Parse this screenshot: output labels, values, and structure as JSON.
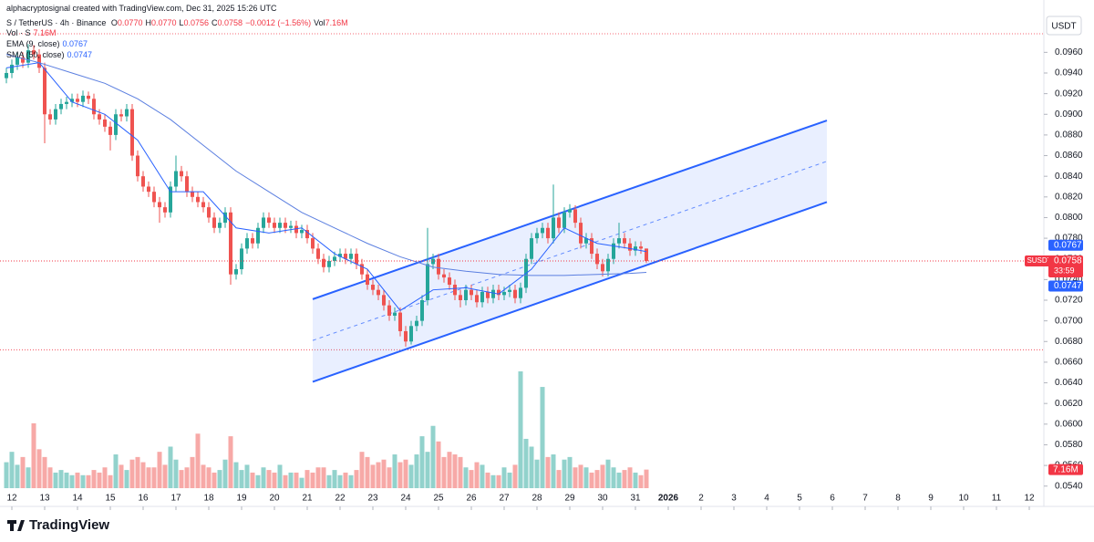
{
  "chart_data": {
    "type": "candlestick",
    "credit": "alphacryptosignal created with TradingView.com, Dec 31, 2025 15:26 UTC",
    "symbol": "S / TetherUS · 4h · Binance",
    "ohlc_keys": [
      "O",
      "H",
      "L",
      "C"
    ],
    "ohlc": [
      {
        "value": 0.077,
        "label": "0.0770"
      },
      {
        "value": 0.077,
        "label": "0.0770"
      },
      {
        "value": 0.0756,
        "label": "0.0756"
      },
      {
        "value": 0.0758,
        "label": "0.0758"
      }
    ],
    "change": {
      "value": -0.0012,
      "label": "−0.0012 (−1.56%)"
    },
    "vol_key": "Vol",
    "vol_last": {
      "value": 7.16,
      "label": "7.16M"
    },
    "indicators": [
      {
        "name": "Vol · S",
        "value_label": "7.16M",
        "color": "#f23645"
      },
      {
        "name": "EMA (9, close)",
        "value_label": "0.0767",
        "color": "#2962ff"
      },
      {
        "name": "SMA (50, close)",
        "value_label": "0.0747",
        "color": "#2962ff"
      }
    ],
    "currency": "USDT",
    "up_color": "#26a69a",
    "down_color": "#ef5350",
    "ylim": [
      0.0538,
      0.0993
    ],
    "yticks": [
      {
        "value": 0.054,
        "label": "0.0540"
      },
      {
        "value": 0.056,
        "label": "0.0560"
      },
      {
        "value": 0.058,
        "label": "0.0580"
      },
      {
        "value": 0.06,
        "label": "0.0600"
      },
      {
        "value": 0.062,
        "label": "0.0620"
      },
      {
        "value": 0.064,
        "label": "0.0640"
      },
      {
        "value": 0.066,
        "label": "0.0660"
      },
      {
        "value": 0.068,
        "label": "0.0680"
      },
      {
        "value": 0.07,
        "label": "0.0700"
      },
      {
        "value": 0.072,
        "label": "0.0720"
      },
      {
        "value": 0.074,
        "label": "0.0740"
      },
      {
        "value": 0.076,
        "label": "0.0760"
      },
      {
        "value": 0.078,
        "label": "0.0780"
      },
      {
        "value": 0.08,
        "label": "0.0800"
      },
      {
        "value": 0.082,
        "label": "0.0820"
      },
      {
        "value": 0.084,
        "label": "0.0840"
      },
      {
        "value": 0.086,
        "label": "0.0860"
      },
      {
        "value": 0.088,
        "label": "0.0880"
      },
      {
        "value": 0.09,
        "label": "0.0900"
      },
      {
        "value": 0.092,
        "label": "0.0920"
      },
      {
        "value": 0.094,
        "label": "0.0940"
      },
      {
        "value": 0.096,
        "label": "0.0960"
      }
    ],
    "xticks": [
      {
        "value": 1,
        "label": "12"
      },
      {
        "value": 7,
        "label": "13"
      },
      {
        "value": 13,
        "label": "14"
      },
      {
        "value": 19,
        "label": "15"
      },
      {
        "value": 25,
        "label": "16"
      },
      {
        "value": 31,
        "label": "17"
      },
      {
        "value": 37,
        "label": "18"
      },
      {
        "value": 43,
        "label": "19"
      },
      {
        "value": 49,
        "label": "20"
      },
      {
        "value": 55,
        "label": "21"
      },
      {
        "value": 61,
        "label": "22"
      },
      {
        "value": 67,
        "label": "23"
      },
      {
        "value": 73,
        "label": "24"
      },
      {
        "value": 79,
        "label": "25"
      },
      {
        "value": 85,
        "label": "26"
      },
      {
        "value": 91,
        "label": "27"
      },
      {
        "value": 97,
        "label": "28"
      },
      {
        "value": 103,
        "label": "29"
      },
      {
        "value": 109,
        "label": "30"
      },
      {
        "value": 115,
        "label": "31"
      },
      {
        "value": 121,
        "label": "2026"
      },
      {
        "value": 127,
        "label": "2"
      },
      {
        "value": 133,
        "label": "3"
      },
      {
        "value": 139,
        "label": "4"
      },
      {
        "value": 145,
        "label": "5"
      },
      {
        "value": 151,
        "label": "6"
      },
      {
        "value": 157,
        "label": "7"
      },
      {
        "value": 163,
        "label": "8"
      },
      {
        "value": 169,
        "label": "9"
      },
      {
        "value": 175,
        "label": "10"
      },
      {
        "value": 181,
        "label": "11"
      },
      {
        "value": 187,
        "label": "12"
      }
    ],
    "open": [
      0.0935,
      0.094,
      0.0948,
      0.0955,
      0.095,
      0.0962,
      0.0958,
      0.0945,
      0.09,
      0.0895,
      0.0905,
      0.091,
      0.0912,
      0.0915,
      0.0912,
      0.0918,
      0.0915,
      0.09,
      0.0895,
      0.0888,
      0.088,
      0.09,
      0.0898,
      0.0905,
      0.086,
      0.084,
      0.083,
      0.0825,
      0.0815,
      0.081,
      0.0805,
      0.083,
      0.0845,
      0.084,
      0.0825,
      0.082,
      0.0815,
      0.081,
      0.08,
      0.079,
      0.0795,
      0.0805,
      0.0745,
      0.075,
      0.077,
      0.078,
      0.0775,
      0.079,
      0.08,
      0.0795,
      0.079,
      0.0795,
      0.079,
      0.0792,
      0.0785,
      0.0788,
      0.078,
      0.077,
      0.076,
      0.0752,
      0.0758,
      0.0762,
      0.0765,
      0.076,
      0.0765,
      0.0755,
      0.0745,
      0.0735,
      0.073,
      0.0725,
      0.0715,
      0.0705,
      0.0708,
      0.069,
      0.068,
      0.0695,
      0.07,
      0.072,
      0.0755,
      0.076,
      0.0745,
      0.0742,
      0.0735,
      0.0725,
      0.072,
      0.073,
      0.0725,
      0.0718,
      0.0728,
      0.0722,
      0.073,
      0.0725,
      0.0728,
      0.073,
      0.0722,
      0.0732,
      0.076,
      0.078,
      0.0785,
      0.079,
      0.078,
      0.08,
      0.079,
      0.0805,
      0.0808,
      0.0795,
      0.0775,
      0.078,
      0.0765,
      0.0755,
      0.0748,
      0.076,
      0.0775,
      0.078,
      0.0775,
      0.0768,
      0.0772,
      0.077
    ],
    "high": [
      0.0945,
      0.0953,
      0.096,
      0.096,
      0.0968,
      0.0967,
      0.0963,
      0.095,
      0.0905,
      0.091,
      0.0915,
      0.0917,
      0.092,
      0.092,
      0.0923,
      0.0922,
      0.092,
      0.0905,
      0.09,
      0.0893,
      0.0905,
      0.0905,
      0.091,
      0.091,
      0.0865,
      0.0845,
      0.0835,
      0.083,
      0.082,
      0.0815,
      0.0835,
      0.086,
      0.085,
      0.0845,
      0.083,
      0.0825,
      0.082,
      0.0815,
      0.0805,
      0.08,
      0.081,
      0.081,
      0.0755,
      0.0775,
      0.0785,
      0.0785,
      0.0795,
      0.0805,
      0.0805,
      0.08,
      0.08,
      0.08,
      0.0797,
      0.0797,
      0.0793,
      0.0793,
      0.0785,
      0.0775,
      0.0765,
      0.0763,
      0.0767,
      0.077,
      0.077,
      0.077,
      0.077,
      0.076,
      0.075,
      0.074,
      0.0735,
      0.073,
      0.072,
      0.0713,
      0.0713,
      0.0695,
      0.07,
      0.0705,
      0.0725,
      0.079,
      0.0765,
      0.0765,
      0.075,
      0.0747,
      0.074,
      0.073,
      0.0735,
      0.0735,
      0.073,
      0.0733,
      0.0733,
      0.0735,
      0.0735,
      0.0733,
      0.0735,
      0.0735,
      0.0737,
      0.0765,
      0.0785,
      0.079,
      0.0795,
      0.0795,
      0.0832,
      0.0805,
      0.081,
      0.0813,
      0.0812,
      0.08,
      0.0785,
      0.0785,
      0.077,
      0.076,
      0.0765,
      0.078,
      0.0795,
      0.0785,
      0.078,
      0.0777,
      0.0777,
      0.077
    ],
    "low": [
      0.093,
      0.0935,
      0.0943,
      0.0945,
      0.0945,
      0.0953,
      0.094,
      0.0872,
      0.089,
      0.089,
      0.09,
      0.0905,
      0.0907,
      0.0907,
      0.0907,
      0.091,
      0.0895,
      0.089,
      0.0883,
      0.0865,
      0.0875,
      0.0893,
      0.0893,
      0.0855,
      0.0835,
      0.0825,
      0.082,
      0.081,
      0.0795,
      0.08,
      0.08,
      0.0825,
      0.0835,
      0.082,
      0.0815,
      0.081,
      0.0805,
      0.0795,
      0.0785,
      0.0785,
      0.079,
      0.0735,
      0.074,
      0.0745,
      0.0765,
      0.077,
      0.077,
      0.0785,
      0.079,
      0.0785,
      0.0785,
      0.0785,
      0.0785,
      0.078,
      0.078,
      0.0775,
      0.0765,
      0.0755,
      0.0747,
      0.0747,
      0.0753,
      0.0757,
      0.0755,
      0.0755,
      0.075,
      0.074,
      0.073,
      0.0725,
      0.072,
      0.071,
      0.07,
      0.07,
      0.0685,
      0.0675,
      0.0677,
      0.069,
      0.0695,
      0.0715,
      0.075,
      0.074,
      0.0737,
      0.073,
      0.072,
      0.0713,
      0.0715,
      0.072,
      0.0713,
      0.0713,
      0.0717,
      0.0717,
      0.072,
      0.072,
      0.0723,
      0.0717,
      0.0717,
      0.0727,
      0.0755,
      0.0775,
      0.078,
      0.0775,
      0.0775,
      0.0785,
      0.0785,
      0.08,
      0.079,
      0.077,
      0.077,
      0.076,
      0.075,
      0.0743,
      0.0743,
      0.0755,
      0.077,
      0.077,
      0.0763,
      0.0763,
      0.0765,
      0.0756
    ],
    "close": [
      0.094,
      0.0948,
      0.0955,
      0.095,
      0.0962,
      0.0958,
      0.0945,
      0.09,
      0.0895,
      0.0905,
      0.091,
      0.0912,
      0.0915,
      0.0912,
      0.0918,
      0.0915,
      0.09,
      0.0895,
      0.0888,
      0.088,
      0.09,
      0.0898,
      0.0905,
      0.086,
      0.084,
      0.083,
      0.0825,
      0.0815,
      0.081,
      0.0805,
      0.083,
      0.0845,
      0.084,
      0.0825,
      0.082,
      0.0815,
      0.081,
      0.08,
      0.079,
      0.0795,
      0.0805,
      0.0745,
      0.075,
      0.077,
      0.078,
      0.0775,
      0.079,
      0.08,
      0.0795,
      0.079,
      0.0795,
      0.079,
      0.0792,
      0.0785,
      0.0788,
      0.078,
      0.077,
      0.076,
      0.0752,
      0.0758,
      0.0762,
      0.0765,
      0.076,
      0.0765,
      0.0755,
      0.0745,
      0.0735,
      0.073,
      0.0725,
      0.0715,
      0.0705,
      0.0708,
      0.069,
      0.068,
      0.0695,
      0.07,
      0.072,
      0.0755,
      0.076,
      0.0745,
      0.0742,
      0.0735,
      0.0725,
      0.072,
      0.073,
      0.0725,
      0.0718,
      0.0728,
      0.0722,
      0.073,
      0.0725,
      0.0728,
      0.073,
      0.0722,
      0.0732,
      0.076,
      0.078,
      0.0785,
      0.079,
      0.078,
      0.08,
      0.079,
      0.0805,
      0.0808,
      0.0795,
      0.0775,
      0.078,
      0.0765,
      0.0755,
      0.0748,
      0.076,
      0.0775,
      0.078,
      0.0775,
      0.0768,
      0.0772,
      0.077,
      0.0758
    ],
    "volume": [
      10,
      14,
      9,
      12,
      8,
      25,
      15,
      12,
      8,
      6,
      7,
      6,
      5,
      6,
      5,
      5,
      7,
      6,
      8,
      5,
      13,
      9,
      7,
      11,
      12,
      10,
      8,
      8,
      14,
      9,
      16,
      11,
      7,
      8,
      12,
      21,
      9,
      8,
      6,
      7,
      11,
      20,
      10,
      7,
      9,
      6,
      5,
      8,
      7,
      6,
      9,
      5,
      6,
      6,
      4,
      7,
      6,
      8,
      8,
      5,
      7,
      5,
      6,
      5,
      7,
      14,
      12,
      9,
      10,
      11,
      8,
      13,
      10,
      11,
      9,
      13,
      20,
      14,
      24,
      18,
      12,
      14,
      13,
      12,
      8,
      7,
      10,
      9,
      6,
      5,
      5,
      8,
      6,
      9,
      45,
      19,
      16,
      11,
      39,
      12,
      13,
      7,
      11,
      12,
      8,
      9,
      8,
      6,
      7,
      9,
      11,
      8,
      6,
      7,
      8,
      6,
      5,
      7.16
    ],
    "lines": [
      {
        "name": "EMA (9, close)",
        "color": "#2962ff",
        "x": [
          0,
          6,
          12,
          18,
          24,
          30,
          36,
          42,
          48,
          54,
          60,
          66,
          72,
          78,
          84,
          90,
          96,
          102,
          108,
          114,
          117
        ],
        "values": [
          0.0945,
          0.095,
          0.0912,
          0.09,
          0.0875,
          0.0825,
          0.0825,
          0.079,
          0.0785,
          0.079,
          0.0765,
          0.075,
          0.071,
          0.073,
          0.0732,
          0.0726,
          0.075,
          0.079,
          0.0775,
          0.077,
          0.0767
        ]
      },
      {
        "name": "SMA (50, close)",
        "color": "#5b7fe0",
        "x": [
          0,
          6,
          12,
          18,
          24,
          30,
          36,
          42,
          48,
          54,
          60,
          66,
          72,
          78,
          84,
          90,
          96,
          102,
          108,
          114,
          117
        ],
        "values": [
          0.0958,
          0.095,
          0.094,
          0.093,
          0.0915,
          0.0895,
          0.087,
          0.0845,
          0.0825,
          0.0805,
          0.079,
          0.0775,
          0.0762,
          0.0752,
          0.0748,
          0.0745,
          0.0744,
          0.0744,
          0.0745,
          0.0746,
          0.0747
        ]
      }
    ],
    "channel": {
      "x": [
        56,
        150
      ],
      "upper": [
        0.0721,
        0.0894
      ],
      "lower": [
        0.0641,
        0.0815
      ],
      "color": "#2962ff"
    },
    "levels": [
      0.0978,
      0.0672
    ],
    "price_badges": [
      {
        "value": 0.0767,
        "label": "0.0767",
        "color": "#2962ff"
      },
      {
        "value": 0.0758,
        "label": "0.0758",
        "color": "#f23645",
        "name": "SUSDT",
        "timer": "33:59"
      },
      {
        "value": 0.0747,
        "label": "0.0747",
        "color": "#2962ff"
      }
    ],
    "logo": "TradingView"
  }
}
